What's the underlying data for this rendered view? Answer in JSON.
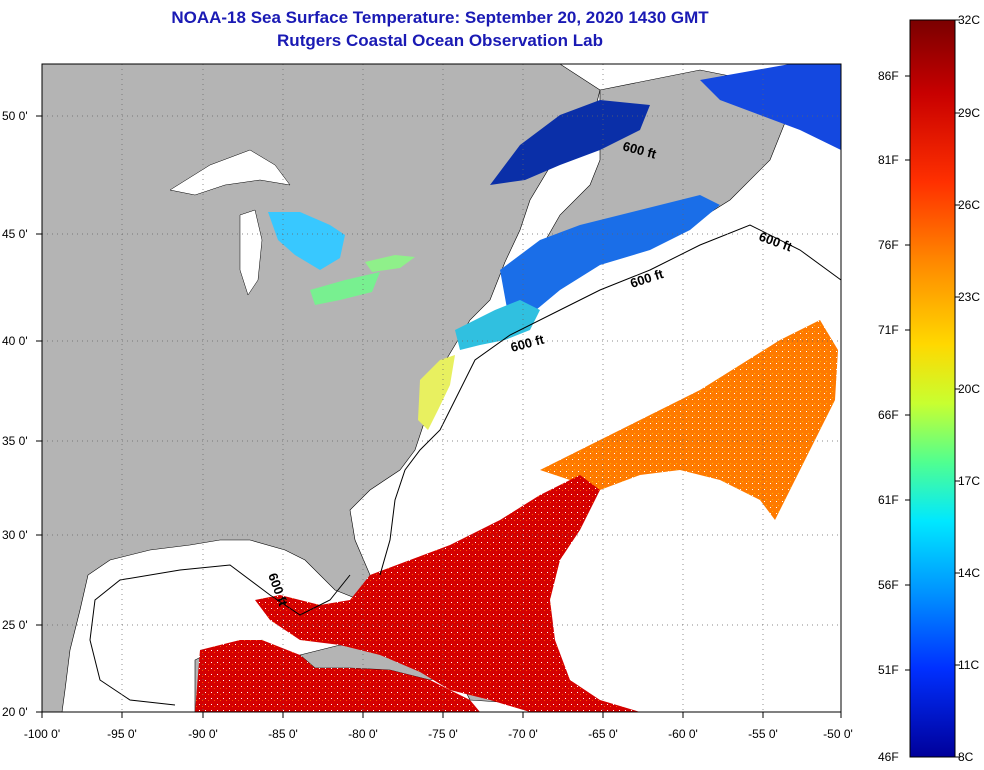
{
  "title_line1": "NOAA-18 Sea Surface Temperature:  September 20, 2020 1430 GMT",
  "title_line2": "Rutgers Coastal Ocean Observation Lab",
  "lat_labels": [
    "50 0'",
    "45 0'",
    "40 0'",
    "35 0'",
    "30 0'",
    "25 0'",
    "20 0'"
  ],
  "lon_labels": [
    "-100 0'",
    "-95 0'",
    "-90 0'",
    "-85 0'",
    "-80 0'",
    "-75 0'",
    "-70 0'",
    "-65 0'",
    "-60 0'",
    "-55 0'",
    "-50 0'"
  ],
  "contour_label": "600 ft",
  "colorbar": {
    "fahrenheit_labels": [
      "86F",
      "81F",
      "76F",
      "71F",
      "66F",
      "61F",
      "56F",
      "51F",
      "46F"
    ],
    "celsius_labels": [
      "32C",
      "29C",
      "26C",
      "23C",
      "20C",
      "17C",
      "14C",
      "11C",
      "8C"
    ],
    "colors": [
      "#7a0000",
      "#c80000",
      "#ff3000",
      "#ff8a00",
      "#ffd800",
      "#c8ff30",
      "#50ff90",
      "#00e8ff",
      "#0090ff",
      "#0030ff",
      "#00009a"
    ]
  },
  "colors": {
    "land": "#b4b4b4",
    "ocean_nodata": "#ffffff",
    "title": "#1a1ab4"
  }
}
